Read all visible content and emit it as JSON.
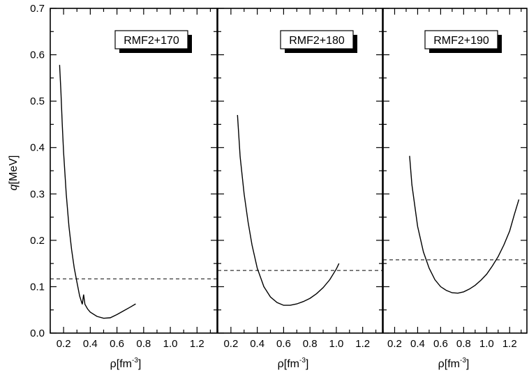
{
  "chart_data": {
    "type": "line",
    "ylabel_symbol": "q",
    "ylabel_unit": "[MeV]",
    "xlabel_symbol": "ρ",
    "xlabel_unit": "[fm",
    "xlabel_exponent": "-3",
    "xlabel_close": "]",
    "ylim": [
      0.0,
      0.7
    ],
    "xlim": [
      0.1,
      1.35
    ],
    "yticks": [
      "0.0",
      "0.1",
      "0.2",
      "0.3",
      "0.4",
      "0.5",
      "0.6",
      "0.7"
    ],
    "xticks": [
      "0.2",
      "0.4",
      "0.6",
      "0.8",
      "1.0",
      "1.2"
    ],
    "grid": false,
    "panels": [
      {
        "label": "RMF2+170",
        "threshold": 0.117,
        "curve": [
          [
            0.17,
            0.578
          ],
          [
            0.18,
            0.52
          ],
          [
            0.19,
            0.45
          ],
          [
            0.2,
            0.39
          ],
          [
            0.22,
            0.3
          ],
          [
            0.24,
            0.23
          ],
          [
            0.26,
            0.18
          ],
          [
            0.28,
            0.14
          ],
          [
            0.3,
            0.11
          ],
          [
            0.32,
            0.08
          ],
          [
            0.34,
            0.062
          ],
          [
            0.35,
            0.083
          ],
          [
            0.36,
            0.062
          ],
          [
            0.38,
            0.052
          ],
          [
            0.4,
            0.045
          ],
          [
            0.45,
            0.036
          ],
          [
            0.5,
            0.032
          ],
          [
            0.55,
            0.033
          ],
          [
            0.6,
            0.04
          ],
          [
            0.65,
            0.048
          ],
          [
            0.7,
            0.056
          ],
          [
            0.74,
            0.063
          ]
        ]
      },
      {
        "label": "RMF2+180",
        "threshold": 0.135,
        "curve": [
          [
            0.25,
            0.47
          ],
          [
            0.27,
            0.38
          ],
          [
            0.3,
            0.3
          ],
          [
            0.33,
            0.24
          ],
          [
            0.36,
            0.19
          ],
          [
            0.4,
            0.14
          ],
          [
            0.45,
            0.1
          ],
          [
            0.5,
            0.078
          ],
          [
            0.55,
            0.066
          ],
          [
            0.6,
            0.06
          ],
          [
            0.65,
            0.06
          ],
          [
            0.7,
            0.063
          ],
          [
            0.75,
            0.068
          ],
          [
            0.8,
            0.075
          ],
          [
            0.85,
            0.085
          ],
          [
            0.9,
            0.098
          ],
          [
            0.95,
            0.115
          ],
          [
            1.0,
            0.138
          ],
          [
            1.02,
            0.15
          ]
        ]
      },
      {
        "label": "RMF2+190",
        "threshold": 0.158,
        "curve": [
          [
            0.33,
            0.382
          ],
          [
            0.35,
            0.32
          ],
          [
            0.4,
            0.23
          ],
          [
            0.45,
            0.175
          ],
          [
            0.5,
            0.14
          ],
          [
            0.55,
            0.115
          ],
          [
            0.6,
            0.1
          ],
          [
            0.65,
            0.092
          ],
          [
            0.7,
            0.087
          ],
          [
            0.75,
            0.086
          ],
          [
            0.8,
            0.089
          ],
          [
            0.85,
            0.095
          ],
          [
            0.9,
            0.103
          ],
          [
            0.95,
            0.114
          ],
          [
            1.0,
            0.127
          ],
          [
            1.05,
            0.145
          ],
          [
            1.1,
            0.165
          ],
          [
            1.15,
            0.19
          ],
          [
            1.2,
            0.22
          ],
          [
            1.24,
            0.255
          ],
          [
            1.28,
            0.288
          ]
        ]
      }
    ]
  }
}
